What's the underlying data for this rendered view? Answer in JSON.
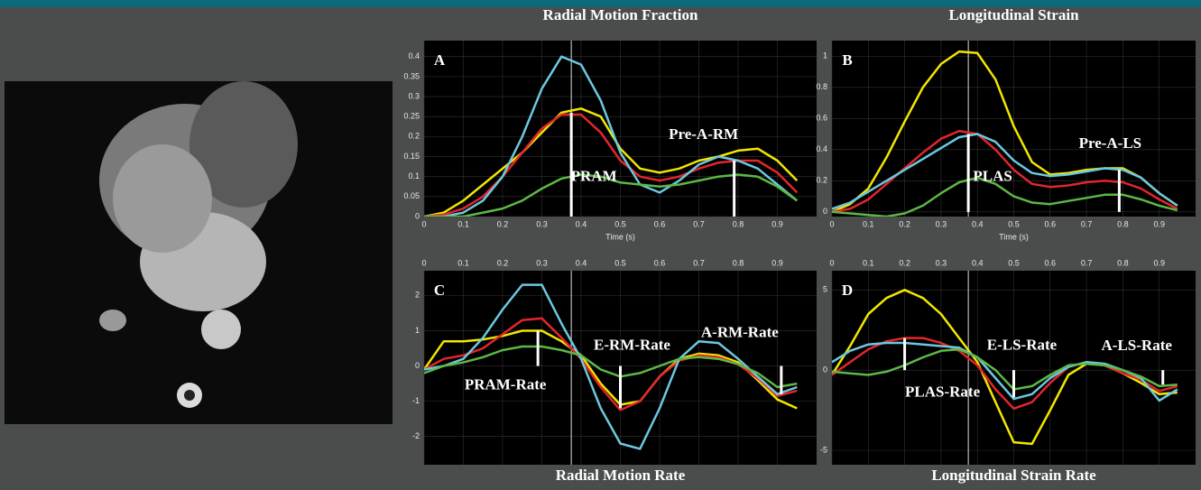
{
  "chart_data": [
    {
      "type": "line",
      "title": "Radial Motion Fraction",
      "title_position": "top",
      "xlabel": "Time (s)",
      "panel_label": "A",
      "x": [
        0,
        0.05,
        0.1,
        0.15,
        0.2,
        0.25,
        0.3,
        0.35,
        0.4,
        0.45,
        0.5,
        0.55,
        0.6,
        0.65,
        0.7,
        0.75,
        0.8,
        0.85,
        0.9,
        0.95
      ],
      "series": [
        {
          "color": "#f2e600",
          "values": [
            0,
            0.01,
            0.04,
            0.08,
            0.12,
            0.16,
            0.21,
            0.26,
            0.27,
            0.25,
            0.17,
            0.12,
            0.11,
            0.12,
            0.14,
            0.15,
            0.165,
            0.17,
            0.14,
            0.09
          ]
        },
        {
          "color": "#e3262a",
          "values": [
            0,
            0.005,
            0.02,
            0.05,
            0.1,
            0.16,
            0.22,
            0.255,
            0.255,
            0.21,
            0.14,
            0.1,
            0.09,
            0.1,
            0.12,
            0.135,
            0.14,
            0.14,
            0.11,
            0.06
          ]
        },
        {
          "color": "#6cc8e0",
          "values": [
            0,
            0,
            0.01,
            0.04,
            0.1,
            0.2,
            0.32,
            0.4,
            0.38,
            0.29,
            0.16,
            0.08,
            0.06,
            0.09,
            0.13,
            0.15,
            0.14,
            0.12,
            0.08,
            0.04
          ]
        },
        {
          "color": "#5cb847",
          "values": [
            0,
            0,
            0,
            0.01,
            0.02,
            0.04,
            0.07,
            0.095,
            0.105,
            0.1,
            0.085,
            0.08,
            0.075,
            0.08,
            0.09,
            0.1,
            0.105,
            0.1,
            0.075,
            0.04
          ]
        }
      ],
      "markers": [
        {
          "label": "PRAM",
          "x": 0.375,
          "value": 0.26
        },
        {
          "label": "Pre-A-RM",
          "x": 0.79,
          "value": 0.14
        }
      ],
      "cursor_x": 0.375,
      "xlim": [
        0,
        1
      ],
      "ylim": [
        0,
        0.44
      ],
      "xaxis_position": "bottom",
      "xticks": [
        0,
        0.1,
        0.2,
        0.3,
        0.4,
        0.5,
        0.6,
        0.7,
        0.8,
        0.9
      ],
      "yticks": [
        0,
        0.05,
        0.1,
        0.15,
        0.2,
        0.25,
        0.3,
        0.35,
        0.4
      ],
      "grid": true
    },
    {
      "type": "line",
      "title": "Longitudinal Strain",
      "title_position": "top",
      "xlabel": "Time (s)",
      "panel_label": "B",
      "x": [
        0,
        0.05,
        0.1,
        0.15,
        0.2,
        0.25,
        0.3,
        0.35,
        0.4,
        0.45,
        0.5,
        0.55,
        0.6,
        0.65,
        0.7,
        0.75,
        0.8,
        0.85,
        0.9,
        0.95
      ],
      "series": [
        {
          "color": "#f2e600",
          "values": [
            0,
            0.05,
            0.15,
            0.35,
            0.58,
            0.8,
            0.95,
            1.03,
            1.02,
            0.85,
            0.55,
            0.32,
            0.24,
            0.25,
            0.27,
            0.28,
            0.28,
            0.22,
            0.12,
            0.04
          ]
        },
        {
          "color": "#e3262a",
          "values": [
            0,
            0.02,
            0.08,
            0.18,
            0.28,
            0.38,
            0.47,
            0.52,
            0.5,
            0.4,
            0.27,
            0.18,
            0.16,
            0.17,
            0.19,
            0.2,
            0.19,
            0.15,
            0.08,
            0.02
          ]
        },
        {
          "color": "#6cc8e0",
          "values": [
            0.02,
            0.06,
            0.13,
            0.2,
            0.27,
            0.34,
            0.41,
            0.48,
            0.5,
            0.45,
            0.33,
            0.25,
            0.23,
            0.24,
            0.26,
            0.28,
            0.27,
            0.22,
            0.12,
            0.04
          ]
        },
        {
          "color": "#5cb847",
          "values": [
            0,
            -0.01,
            -0.02,
            -0.03,
            -0.01,
            0.04,
            0.12,
            0.19,
            0.22,
            0.18,
            0.1,
            0.06,
            0.05,
            0.07,
            0.09,
            0.11,
            0.11,
            0.08,
            0.04,
            0.01
          ]
        }
      ],
      "markers": [
        {
          "label": "PLAS",
          "x": 0.375,
          "value": 0.5
        },
        {
          "label": "Pre-A-LS",
          "x": 0.79,
          "value": 0.27
        }
      ],
      "cursor_x": 0.375,
      "xlim": [
        0,
        1
      ],
      "ylim": [
        -0.03,
        1.1
      ],
      "xaxis_position": "bottom",
      "xticks": [
        0,
        0.1,
        0.2,
        0.3,
        0.4,
        0.5,
        0.6,
        0.7,
        0.8,
        0.9
      ],
      "yticks": [
        0,
        0.2,
        0.4,
        0.6,
        0.8,
        1
      ],
      "grid": true
    },
    {
      "type": "line",
      "title": "Radial Motion Rate",
      "title_position": "bottom",
      "panel_label": "C",
      "x": [
        0,
        0.05,
        0.1,
        0.15,
        0.2,
        0.25,
        0.3,
        0.35,
        0.4,
        0.45,
        0.5,
        0.55,
        0.6,
        0.65,
        0.7,
        0.75,
        0.8,
        0.85,
        0.9,
        0.95
      ],
      "series": [
        {
          "color": "#f2e600",
          "values": [
            -0.1,
            0.7,
            0.7,
            0.75,
            0.85,
            1.0,
            1.0,
            0.7,
            0.3,
            -0.5,
            -1.1,
            -1.0,
            -0.3,
            0.2,
            0.35,
            0.3,
            0.1,
            -0.4,
            -0.95,
            -1.2
          ]
        },
        {
          "color": "#e3262a",
          "values": [
            -0.1,
            0.2,
            0.3,
            0.5,
            0.9,
            1.3,
            1.35,
            0.8,
            0.2,
            -0.6,
            -1.25,
            -1.0,
            -0.3,
            0.15,
            0.3,
            0.25,
            0.05,
            -0.35,
            -0.85,
            -0.7
          ]
        },
        {
          "color": "#6cc8e0",
          "values": [
            -0.1,
            0,
            0.2,
            0.8,
            1.6,
            2.3,
            2.3,
            1.2,
            0.2,
            -1.2,
            -2.2,
            -2.35,
            -1.2,
            0.2,
            0.7,
            0.65,
            0.2,
            -0.3,
            -0.8,
            -0.6
          ]
        },
        {
          "color": "#5cb847",
          "values": [
            -0.2,
            0,
            0.1,
            0.25,
            0.45,
            0.55,
            0.55,
            0.45,
            0.3,
            -0.1,
            -0.3,
            -0.2,
            0,
            0.2,
            0.25,
            0.2,
            0.05,
            -0.2,
            -0.6,
            -0.5
          ]
        }
      ],
      "markers": [
        {
          "label": "PRAM-Rate",
          "x": 0.29,
          "value": 1.0
        },
        {
          "label": "E-RM-Rate",
          "x": 0.5,
          "value": -1.2
        },
        {
          "label": "A-RM-Rate",
          "x": 0.91,
          "value": -0.8
        }
      ],
      "cursor_x": 0.375,
      "xlim": [
        0,
        1
      ],
      "ylim": [
        -2.8,
        2.7
      ],
      "xaxis_position": "top",
      "xticks": [
        0,
        0.1,
        0.2,
        0.3,
        0.4,
        0.5,
        0.6,
        0.7,
        0.8,
        0.9
      ],
      "yticks": [
        -2,
        -1,
        0,
        1,
        2
      ],
      "grid": true
    },
    {
      "type": "line",
      "title": "Longitudinal Strain Rate",
      "title_position": "bottom",
      "panel_label": "D",
      "x": [
        0,
        0.05,
        0.1,
        0.15,
        0.2,
        0.25,
        0.3,
        0.35,
        0.4,
        0.45,
        0.5,
        0.55,
        0.6,
        0.65,
        0.7,
        0.75,
        0.8,
        0.85,
        0.9,
        0.95
      ],
      "series": [
        {
          "color": "#f2e600",
          "values": [
            -0.3,
            1.5,
            3.5,
            4.5,
            5.0,
            4.5,
            3.5,
            2.0,
            0.5,
            -2.0,
            -4.5,
            -4.6,
            -2.5,
            -0.3,
            0.4,
            0.3,
            -0.2,
            -0.8,
            -1.5,
            -1.4
          ]
        },
        {
          "color": "#e3262a",
          "values": [
            -0.3,
            0.5,
            1.3,
            1.8,
            2.0,
            2.0,
            1.7,
            1.2,
            0.3,
            -1.2,
            -2.4,
            -2.0,
            -0.8,
            0.2,
            0.5,
            0.3,
            -0.2,
            -0.6,
            -1.3,
            -1.0
          ]
        },
        {
          "color": "#6cc8e0",
          "values": [
            0.5,
            1.2,
            1.6,
            1.7,
            1.7,
            1.6,
            1.5,
            1.4,
            0.8,
            -0.5,
            -1.8,
            -1.5,
            -0.5,
            0.2,
            0.5,
            0.4,
            0,
            -0.5,
            -1.9,
            -1.2
          ]
        },
        {
          "color": "#5cb847",
          "values": [
            -0.1,
            -0.2,
            -0.3,
            -0.1,
            0.3,
            0.8,
            1.2,
            1.3,
            0.8,
            0,
            -1.2,
            -1.0,
            -0.3,
            0.3,
            0.4,
            0.3,
            0,
            -0.4,
            -1.0,
            -0.9
          ]
        }
      ],
      "markers": [
        {
          "label": "PLAS-Rate",
          "x": 0.2,
          "value": 2.0
        },
        {
          "label": "E-LS-Rate",
          "x": 0.5,
          "value": -1.7
        },
        {
          "label": "A-LS-Rate",
          "x": 0.91,
          "value": -0.9
        }
      ],
      "cursor_x": 0.375,
      "xlim": [
        0,
        1
      ],
      "ylim": [
        -5.9,
        6.2
      ],
      "xaxis_position": "top",
      "xticks": [
        0,
        0.1,
        0.2,
        0.3,
        0.4,
        0.5,
        0.6,
        0.7,
        0.8,
        0.9
      ],
      "yticks": [
        -5,
        0,
        5
      ],
      "grid": true
    }
  ]
}
